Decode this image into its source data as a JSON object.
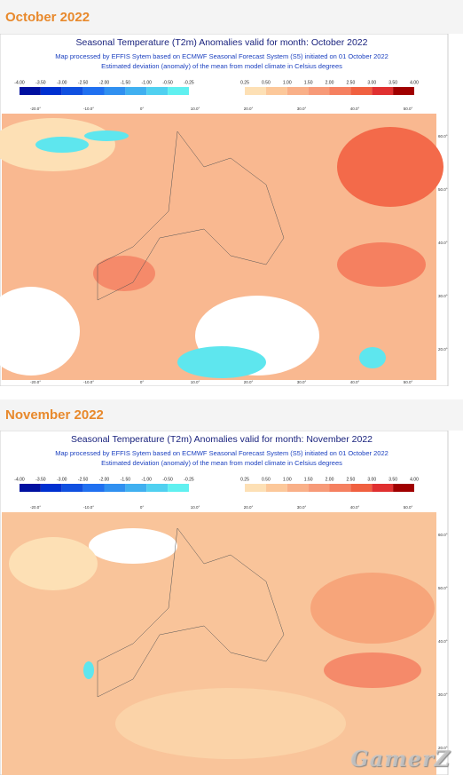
{
  "sections": [
    {
      "heading": "October 2022",
      "title": "Seasonal Temperature (T2m) Anomalies valid for month: October 2022",
      "subtitle": "Map processed by EFFIS Sytem based on ECMWF Seasonal Forecast System (S5) initiated on 01 October 2022",
      "note": "Estimated deviation (anomaly) of the mean from model climate in Celsius degrees",
      "legend_cold": [
        "-4.00",
        "-3.50",
        "-3.00",
        "-2.50",
        "-2.00",
        "-1.50",
        "-1.00",
        "-0.50",
        "-0.25"
      ],
      "legend_warm": [
        "0.25",
        "0.50",
        "1.00",
        "1.50",
        "2.00",
        "2.50",
        "3.00",
        "3.50",
        "4.00"
      ],
      "lon_top": [
        "-20.0°",
        "-10.0°",
        "0°",
        "10.0°",
        "20.0°",
        "30.0°",
        "40.0°",
        "50.0°"
      ],
      "lon_bottom": [
        "-20.0°",
        "-10.0°",
        "0°",
        "10.0°",
        "20.0°",
        "30.0°",
        "40.0°",
        "50.0°"
      ],
      "lat": [
        "60.0°",
        "50.0°",
        "40.0°",
        "30.0°",
        "20.0°"
      ]
    },
    {
      "heading": "November 2022",
      "title": "Seasonal Temperature (T2m) Anomalies valid for month: November 2022",
      "subtitle": "Map processed by EFFIS Sytem based on ECMWF Seasonal Forecast System (S5) initiated on 01 October 2022",
      "note": "Estimated deviation (anomaly) of the mean from model climate in Celsius degrees",
      "legend_cold": [
        "-4.00",
        "-3.50",
        "-3.00",
        "-2.50",
        "-2.00",
        "-1.50",
        "-1.00",
        "-0.50",
        "-0.25"
      ],
      "legend_warm": [
        "0.25",
        "0.50",
        "1.00",
        "1.50",
        "2.00",
        "2.50",
        "3.00",
        "3.50",
        "4.00"
      ],
      "lon_top": [
        "-20.0°",
        "-10.0°",
        "0°",
        "10.0°",
        "20.0°",
        "30.0°",
        "40.0°",
        "50.0°"
      ],
      "lat": [
        "60.0°",
        "50.0°",
        "40.0°",
        "30.0°",
        "20.0°"
      ]
    }
  ],
  "watermark": "GamerZ"
}
